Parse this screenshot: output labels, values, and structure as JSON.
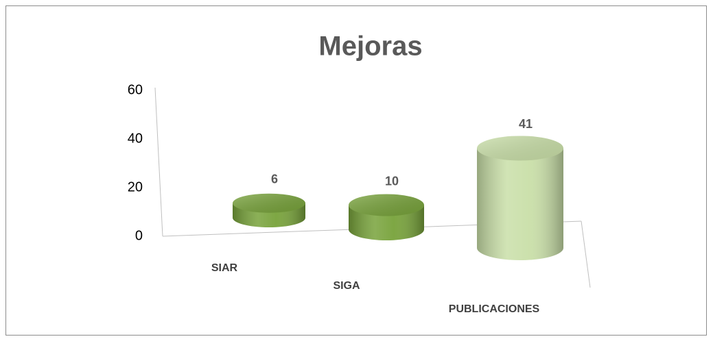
{
  "chart_data": {
    "type": "bar3d",
    "title": "Mejoras",
    "categories": [
      "SIAR",
      "SIGA",
      "PUBLICACIONES"
    ],
    "values": [
      6,
      10,
      41
    ],
    "colors": [
      "#77a23a",
      "#77a23a",
      "#c9dfa8"
    ],
    "ylim": [
      0,
      60
    ],
    "yticks": [
      0,
      20,
      40,
      60
    ]
  }
}
